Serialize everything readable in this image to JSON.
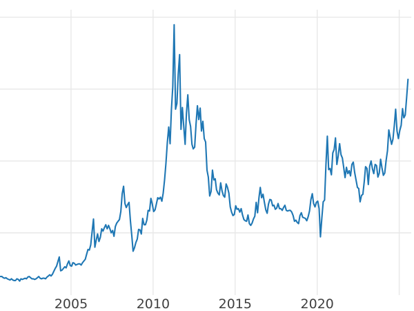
{
  "chart_data": {
    "type": "line",
    "title": "",
    "xlabel": "",
    "ylabel": "",
    "legend": false,
    "grid": true,
    "background": "#ffffff",
    "line_color": "#1f77b4",
    "grid_color": "#e8e8e8",
    "tick_label_color": "#404040",
    "xlim": [
      2000.67,
      2025.9
    ],
    "ylim": [
      -1.1,
      53.0
    ],
    "x_gridline_values": [
      2005,
      2010,
      2015,
      2020,
      2025
    ],
    "x_ticks": [
      {
        "value": 2005,
        "label": "2005"
      },
      {
        "value": 2010,
        "label": "2010"
      },
      {
        "value": 2015,
        "label": "2015"
      },
      {
        "value": 2020,
        "label": "2020"
      },
      {
        "value": 2025,
        "label": ""
      }
    ],
    "y_gridline_values": [
      12.5,
      25,
      37.5,
      50
    ],
    "y_tick_labels_visible": false,
    "series_sampling": "monthly",
    "x_start": 2000.7,
    "x_step": 0.0833333,
    "y": [
      4.9,
      4.9,
      4.7,
      4.6,
      4.7,
      4.5,
      4.4,
      4.3,
      4.5,
      4.3,
      4.2,
      4.2,
      4.5,
      4.4,
      4.1,
      4.5,
      4.4,
      4.5,
      4.6,
      4.5,
      4.8,
      4.9,
      4.7,
      4.5,
      4.5,
      4.4,
      4.5,
      4.7,
      4.9,
      4.6,
      4.5,
      4.6,
      4.6,
      4.5,
      4.8,
      5.0,
      5.2,
      5.0,
      5.3,
      5.8,
      6.3,
      6.7,
      7.5,
      8.3,
      5.9,
      6.0,
      6.3,
      6.6,
      6.4,
      7.1,
      7.6,
      6.8,
      6.7,
      7.3,
      7.2,
      6.9,
      7.0,
      7.1,
      7.1,
      6.9,
      7.3,
      7.6,
      7.9,
      8.8,
      9.6,
      9.5,
      10.4,
      12.7,
      14.9,
      10.0,
      11.2,
      12.3,
      11.0,
      11.7,
      13.2,
      12.8,
      13.4,
      13.9,
      13.2,
      13.8,
      13.2,
      12.5,
      12.9,
      11.9,
      13.6,
      14.2,
      14.5,
      14.8,
      16.2,
      19.3,
      20.6,
      17.6,
      16.9,
      17.4,
      17.8,
      14.6,
      12.0,
      9.3,
      9.9,
      10.8,
      11.4,
      13.1,
      13.0,
      12.3,
      15.0,
      13.9,
      13.9,
      14.7,
      16.4,
      16.3,
      18.5,
      17.5,
      16.2,
      16.5,
      17.5,
      18.6,
      18.4,
      18.7,
      18.0,
      19.4,
      21.7,
      24.6,
      28.2,
      30.9,
      28.0,
      33.9,
      37.9,
      48.7,
      34.0,
      35.0,
      40.1,
      43.5,
      30.5,
      34.3,
      31.0,
      27.9,
      33.3,
      36.5,
      32.2,
      31.0,
      27.9,
      27.1,
      27.4,
      31.4,
      34.6,
      32.2,
      34.2,
      30.2,
      31.9,
      28.9,
      28.3,
      23.4,
      22.2,
      18.9,
      19.7,
      23.4,
      21.7,
      21.9,
      20.0,
      19.4,
      19.1,
      21.2,
      19.8,
      19.0,
      18.7,
      21.0,
      20.4,
      19.4,
      17.0,
      16.1,
      15.5,
      15.7,
      17.2,
      16.6,
      16.7,
      16.1,
      16.7,
      15.6,
      14.8,
      14.6,
      14.5,
      15.6,
      14.1,
      13.8,
      14.2,
      14.9,
      15.4,
      17.8,
      16.0,
      18.6,
      20.4,
      18.6,
      19.2,
      17.8,
      16.5,
      15.9,
      17.5,
      18.3,
      18.2,
      17.2,
      17.3,
      16.6,
      16.8,
      17.6,
      16.7,
      16.7,
      16.4,
      16.9,
      17.3,
      16.4,
      16.3,
      16.4,
      16.4,
      16.1,
      15.5,
      14.5,
      14.7,
      14.3,
      14.1,
      15.5,
      16.0,
      15.2,
      15.1,
      15.0,
      14.6,
      15.3,
      16.3,
      18.3,
      19.3,
      17.6,
      17.0,
      17.8,
      18.0,
      16.7,
      11.8,
      15.0,
      17.9,
      18.2,
      24.4,
      29.3,
      23.5,
      23.7,
      22.6,
      26.4,
      27.0,
      29.0,
      24.4,
      25.9,
      28.0,
      26.1,
      25.5,
      23.9,
      22.1,
      23.9,
      22.8,
      23.3,
      22.4,
      24.4,
      24.8,
      23.0,
      21.7,
      20.4,
      20.2,
      17.9,
      19.0,
      19.2,
      21.4,
      24.0,
      23.7,
      20.9,
      24.1,
      25.0,
      23.6,
      22.8,
      24.4,
      24.2,
      22.2,
      22.9,
      25.3,
      23.8,
      22.5,
      22.9,
      25.1,
      26.8,
      30.4,
      29.1,
      27.9,
      28.8,
      31.2,
      34.0,
      30.2,
      28.9,
      30.3,
      31.2,
      34.1,
      32.5,
      33.0,
      36.0,
      39.2
    ]
  }
}
